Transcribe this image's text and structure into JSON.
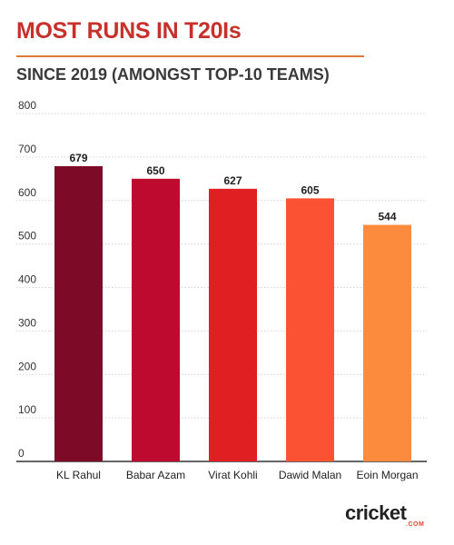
{
  "header": {
    "title": "MOST RUNS IN T20Is",
    "subtitle": "SINCE 2019 (AMONGST TOP-10 TEAMS)"
  },
  "brand": {
    "logo_text": "cricket",
    "logo_sub": ".COM"
  },
  "chart_data": {
    "type": "bar",
    "title": "MOST RUNS IN T20Is",
    "subtitle": "SINCE 2019 (AMONGST TOP-10 TEAMS)",
    "xlabel": "",
    "ylabel": "",
    "categories": [
      "KL Rahul",
      "Babar Azam",
      "Virat Kohli",
      "Dawid Malan",
      "Eoin Morgan"
    ],
    "values": [
      679,
      650,
      627,
      605,
      544
    ],
    "bar_colors": [
      "#7d0a26",
      "#bf0a30",
      "#e01f23",
      "#fb5233",
      "#fd8b3e"
    ],
    "ylim": [
      0,
      800
    ],
    "yticks": [
      0,
      100,
      200,
      300,
      400,
      500,
      600,
      700,
      800
    ],
    "grid": true,
    "data_labels": true,
    "legend": "none"
  }
}
